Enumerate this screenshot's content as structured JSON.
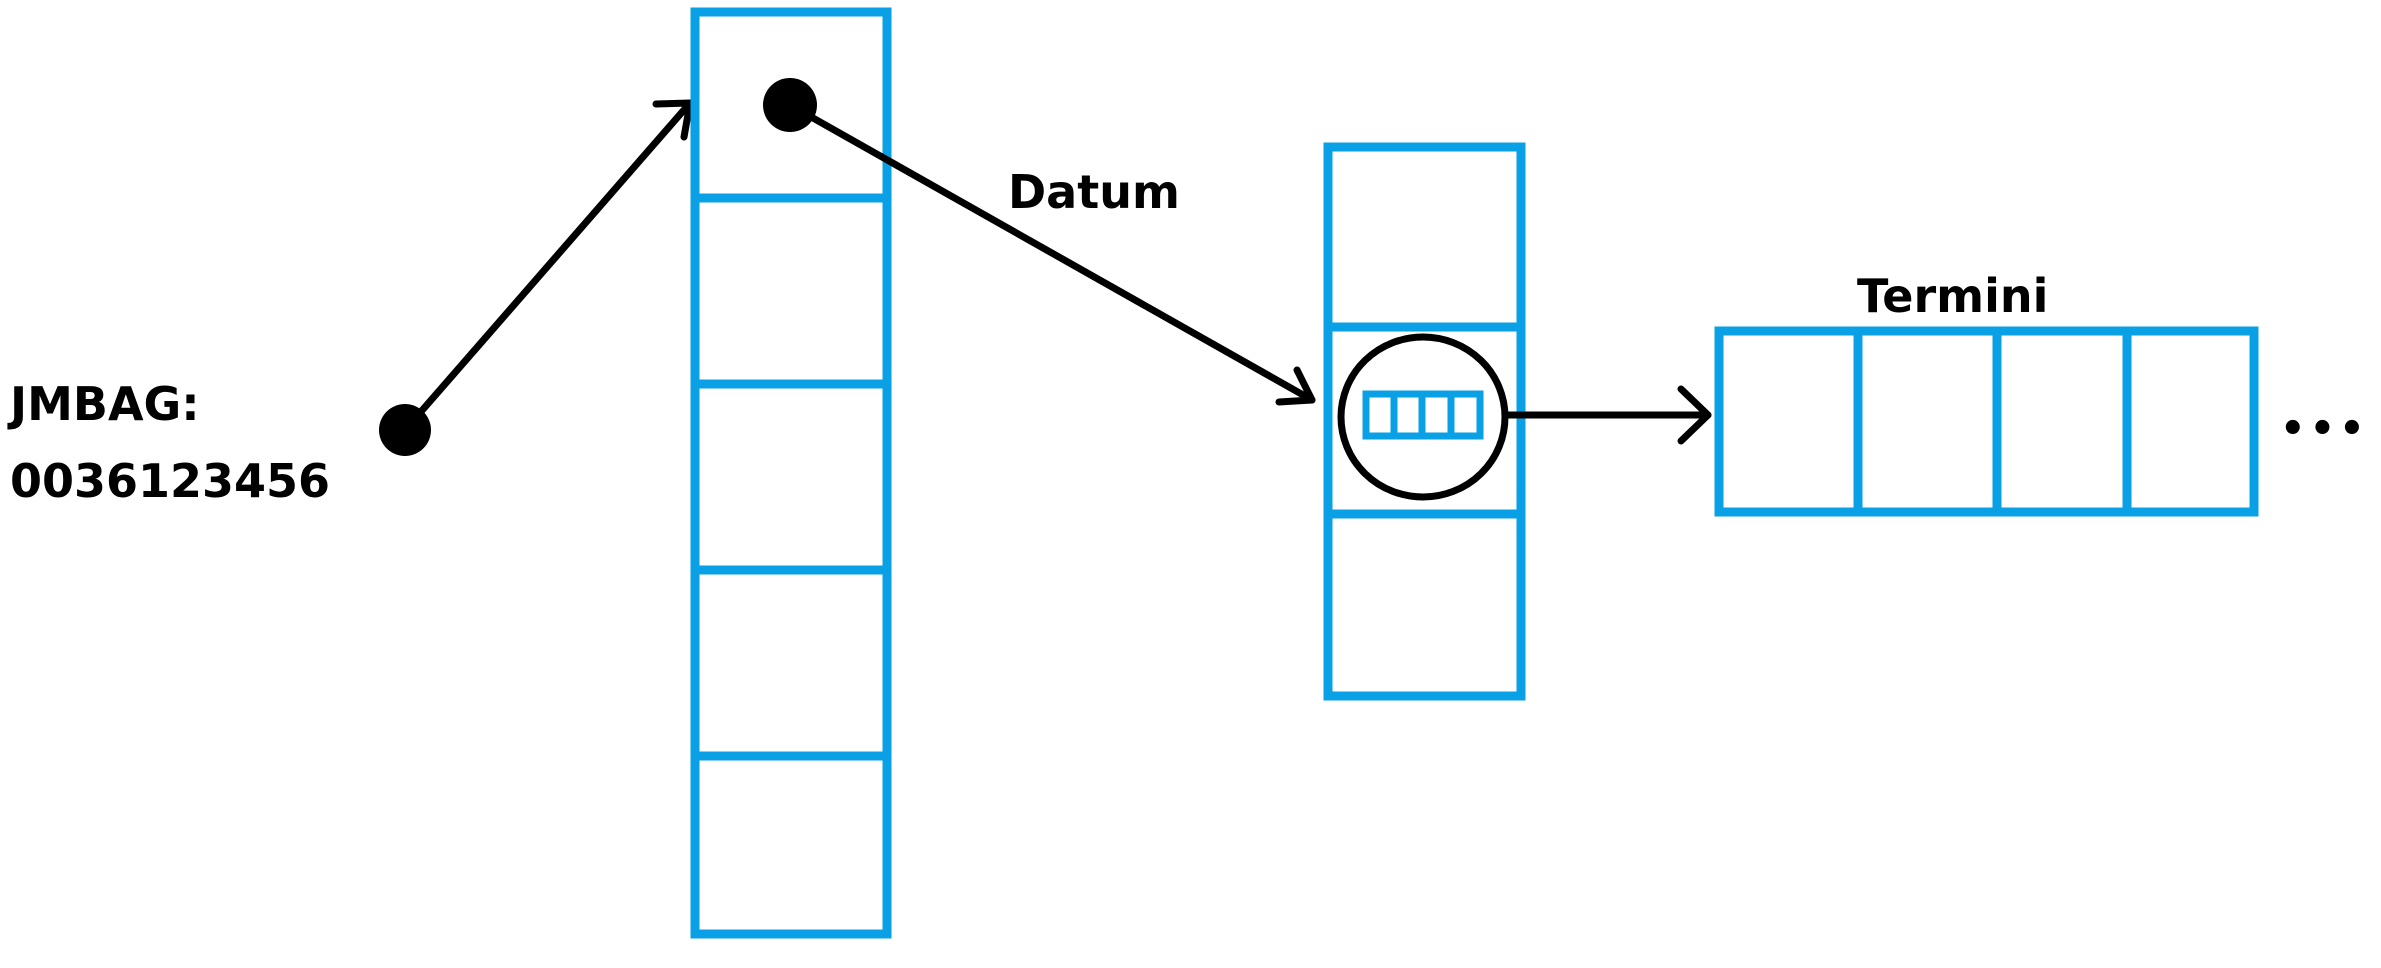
{
  "jmbag_label": "JMBAG:",
  "jmbag_value": "0036123456",
  "datum_label": "Datum",
  "termini_label": "Termini",
  "ellipsis": "•••",
  "colors": {
    "cell_stroke": "#0aa0e6",
    "ink": "#000000"
  }
}
